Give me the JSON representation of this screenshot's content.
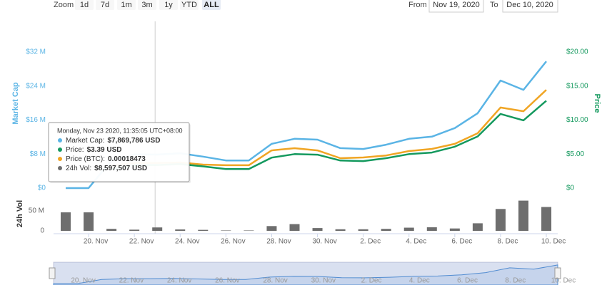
{
  "toolbar": {
    "zoom_label": "Zoom",
    "buttons": [
      "1d",
      "7d",
      "1m",
      "3m",
      "1y",
      "YTD",
      "ALL"
    ],
    "selected_index": 6,
    "from_label": "From",
    "from": "Nov 19, 2020",
    "to_label": "To",
    "to": "Dec 10, 2020"
  },
  "tooltip": {
    "date": "Monday, Nov 23 2020, 11:35:05 UTC+08:00",
    "index": 4,
    "items": [
      {
        "label": "Market Cap:",
        "value": "$7,869,786 USD",
        "color": "#5ab4e5"
      },
      {
        "label": "Price:",
        "value": "$3.39 USD",
        "color": "#14995e"
      },
      {
        "label": "Price (BTC):",
        "value": "0.00018473",
        "color": "#f0a524"
      },
      {
        "label": "24h Vol:",
        "value": "$8,597,507 USD",
        "color": "#6e6e6e"
      }
    ]
  },
  "chart_data": [
    {
      "type": "line",
      "ylabel": "Market Cap",
      "y2label": "Price",
      "categories": [
        null,
        "20. Nov",
        null,
        "22. Nov",
        null,
        "24. Nov",
        null,
        "26. Nov",
        null,
        "28. Nov",
        null,
        "30. Nov",
        null,
        "2. Dec",
        null,
        "4. Dec",
        null,
        "6. Dec",
        null,
        "8. Dec",
        null,
        "10. Dec"
      ],
      "series": [
        {
          "color": "#5ab4e5",
          "axis": "y",
          "values": [
            0,
            0,
            6500000,
            7900000,
            7869786,
            8200000,
            7400000,
            6500000,
            6500000,
            10400000,
            11600000,
            11400000,
            9400000,
            9200000,
            10200000,
            11600000,
            12100000,
            14100000,
            17600000,
            25300000,
            23100000,
            29800000
          ]
        },
        {
          "color": "#14995e",
          "axis": "y2",
          "values": [
            null,
            null,
            2.8,
            3.4,
            3.39,
            3.53,
            3.19,
            2.8,
            2.8,
            4.48,
            5.0,
            4.91,
            4.05,
            3.97,
            4.4,
            5.0,
            5.22,
            6.08,
            7.59,
            10.9,
            9.96,
            12.84
          ]
        },
        {
          "color": "#f0a524",
          "axis": "y3",
          "values": [
            null,
            null,
            0.000165,
            0.000185,
            0.00018473,
            0.000188,
            0.000173,
            0.000168,
            0.000168,
            0.000277,
            0.000293,
            0.000277,
            0.00022,
            0.000225,
            0.00024,
            0.000272,
            0.000288,
            0.000325,
            0.000403,
            0.000592,
            0.000565,
            0.000722
          ]
        }
      ],
      "ylim": [
        0,
        32000000
      ],
      "yticks": [
        {
          "value": 0,
          "label": "$0"
        },
        {
          "value": 8000000,
          "label": "$8 M"
        },
        {
          "value": 16000000,
          "label": "$16 M"
        },
        {
          "value": 24000000,
          "label": "$24 M"
        },
        {
          "value": 32000000,
          "label": "$32 M"
        }
      ],
      "y2lim": [
        0,
        20
      ],
      "y2ticks": [
        {
          "value": 0,
          "label": "$0"
        },
        {
          "value": 5,
          "label": "$5.00"
        },
        {
          "value": 10,
          "label": "$10.00"
        },
        {
          "value": 15,
          "label": "$15.00"
        },
        {
          "value": 20,
          "label": "$20.00"
        }
      ],
      "y3lim": [
        0,
        0.001
      ],
      "grid": false
    },
    {
      "type": "bar",
      "ylabel": "24h Vol",
      "categories": [
        null,
        "20. Nov",
        null,
        "22. Nov",
        null,
        "24. Nov",
        null,
        "26. Nov",
        null,
        "28. Nov",
        null,
        "30. Nov",
        null,
        "2. Dec",
        null,
        "4. Dec",
        null,
        "6. Dec",
        null,
        "8. Dec",
        null,
        "10. Dec"
      ],
      "color": "#6e6e6e",
      "values": [
        46500000,
        46500000,
        5000000,
        3000000,
        8597507,
        3500000,
        2500000,
        1000000,
        1000000,
        12000000,
        17000000,
        7000000,
        4000000,
        4000000,
        5000000,
        8000000,
        9000000,
        6000000,
        19000000,
        55000000,
        76000000,
        60000000
      ],
      "ylim": [
        0,
        86000000
      ],
      "yticks": [
        0,
        {
          "value": 50000000,
          "label": "50 M"
        }
      ],
      "grid": false
    }
  ]
}
